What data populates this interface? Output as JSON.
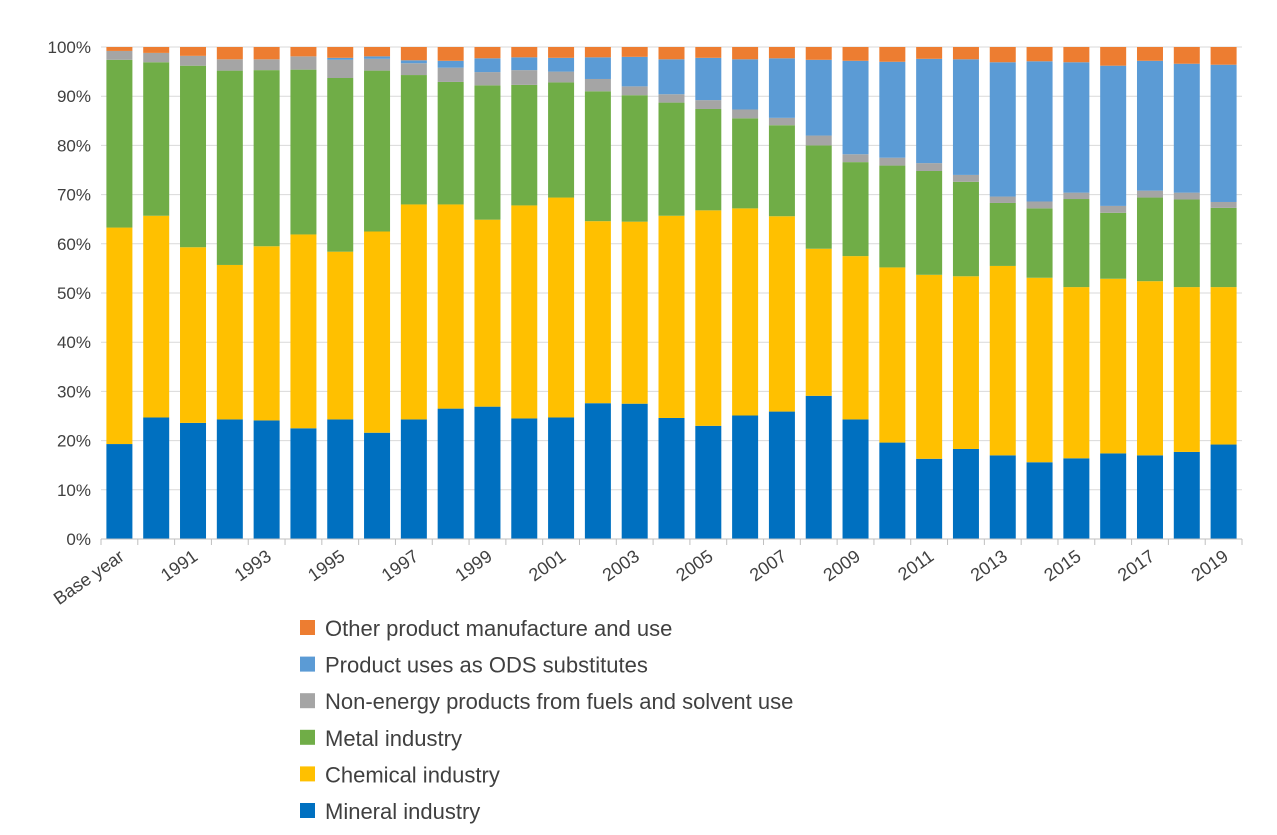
{
  "chart_data": {
    "type": "bar",
    "stacked": true,
    "percent": true,
    "title": "",
    "xlabel": "",
    "ylabel": "",
    "ylim": [
      0,
      100
    ],
    "y_ticks": [
      "0%",
      "10%",
      "20%",
      "30%",
      "40%",
      "50%",
      "60%",
      "70%",
      "80%",
      "90%",
      "100%"
    ],
    "grid": "horizontal",
    "legend_placement": "bottom",
    "categories": [
      "Base year",
      "1990",
      "1991",
      "1992",
      "1993",
      "1994",
      "1995",
      "1996",
      "1997",
      "1998",
      "1999",
      "2000",
      "2001",
      "2002",
      "2003",
      "2004",
      "2005",
      "2006",
      "2007",
      "2008",
      "2009",
      "2010",
      "2011",
      "2012",
      "2013",
      "2014",
      "2015",
      "2016",
      "2017",
      "2018",
      "2019"
    ],
    "x_tick_labels": [
      "Base year",
      "",
      "1991",
      "",
      "1993",
      "",
      "1995",
      "",
      "1997",
      "",
      "1999",
      "",
      "2001",
      "",
      "2003",
      "",
      "2005",
      "",
      "2007",
      "",
      "2009",
      "",
      "2011",
      "",
      "2013",
      "",
      "2015",
      "",
      "2017",
      "",
      "2019"
    ],
    "series": [
      {
        "name": "Mineral industry",
        "color": "#0070C0",
        "values": [
          19.3,
          24.7,
          23.6,
          24.3,
          24.1,
          22.5,
          24.3,
          21.6,
          24.3,
          26.5,
          26.9,
          24.5,
          24.7,
          27.6,
          27.5,
          24.6,
          23.0,
          25.1,
          25.9,
          29.1,
          24.3,
          19.6,
          16.3,
          18.3,
          17.0,
          15.6,
          16.4,
          17.4,
          17.0,
          17.7,
          19.2
        ]
      },
      {
        "name": "Chemical industry",
        "color": "#FFC000",
        "values": [
          44.0,
          41.0,
          35.7,
          31.4,
          35.4,
          39.4,
          34.1,
          40.9,
          43.7,
          41.5,
          38.0,
          43.3,
          44.7,
          37.0,
          37.0,
          41.1,
          43.8,
          42.1,
          39.7,
          29.9,
          33.2,
          35.6,
          37.4,
          35.1,
          38.5,
          37.5,
          34.8,
          35.5,
          35.4,
          33.5,
          32.0
        ]
      },
      {
        "name": "Metal industry",
        "color": "#70AD47",
        "values": [
          34.1,
          31.2,
          36.9,
          39.5,
          35.8,
          33.5,
          35.3,
          32.7,
          26.3,
          24.9,
          27.3,
          24.5,
          23.4,
          26.4,
          25.7,
          23.0,
          20.6,
          18.3,
          18.5,
          21.0,
          19.1,
          20.7,
          21.1,
          19.2,
          12.8,
          14.1,
          17.9,
          13.4,
          17.0,
          17.8,
          16.1
        ]
      },
      {
        "name": "Non-energy products from fuels and solvent use",
        "color": "#A5A5A5",
        "values": [
          1.8,
          1.9,
          2.0,
          2.3,
          2.2,
          2.7,
          3.7,
          2.4,
          2.4,
          2.9,
          2.7,
          3.0,
          2.2,
          2.5,
          1.8,
          1.7,
          1.8,
          1.8,
          1.5,
          2.0,
          1.6,
          1.6,
          1.6,
          1.4,
          1.3,
          1.4,
          1.3,
          1.4,
          1.4,
          1.4,
          1.2
        ]
      },
      {
        "name": "Product uses as ODS substitutes",
        "color": "#5B9BD5",
        "values": [
          0,
          0,
          0,
          0,
          0,
          0,
          0.4,
          0.5,
          0.6,
          1.4,
          2.8,
          2.6,
          2.8,
          4.4,
          6.0,
          7.1,
          8.6,
          10.2,
          12.1,
          15.4,
          19.0,
          19.5,
          21.2,
          23.5,
          27.3,
          28.5,
          26.5,
          28.5,
          26.4,
          26.2,
          27.9
        ]
      },
      {
        "name": "Other product manufacture and use",
        "color": "#ED7D31",
        "values": [
          0.8,
          1.2,
          1.8,
          2.5,
          2.5,
          1.9,
          2.2,
          1.9,
          2.7,
          2.8,
          2.3,
          2.1,
          2.2,
          2.1,
          2.0,
          2.5,
          2.2,
          2.5,
          2.3,
          2.6,
          2.8,
          3.0,
          2.4,
          2.5,
          3.1,
          2.9,
          3.1,
          3.8,
          2.8,
          3.4,
          3.6
        ]
      }
    ]
  }
}
